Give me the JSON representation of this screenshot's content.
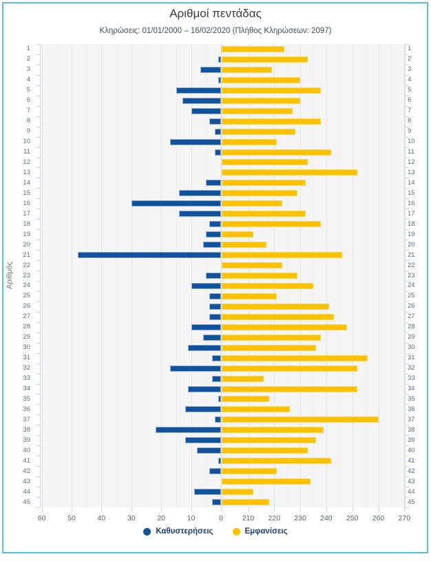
{
  "panel": {
    "title": "Αριθμοί πεντάδας",
    "subtitle": "Κληρώσεις: 01/01/2000 – 16/02/2020 (Πλήθος Κληρώσεων: 2097)"
  },
  "y_axis": {
    "title": "Αριθμός"
  },
  "x_axis": {
    "left_ticks": [
      60,
      50,
      40,
      30,
      20,
      10,
      0
    ],
    "right_ticks": [
      210,
      220,
      230,
      240,
      250,
      260,
      270
    ]
  },
  "legend": {
    "items": [
      {
        "label": "Καθυστερήσεις",
        "color": "#12529c"
      },
      {
        "label": "Εμφανίσεις",
        "color": "#fcc101"
      }
    ]
  },
  "colors": {
    "delay_bar": "#12529c",
    "appear_bar": "#fcc101",
    "panel_border": "#54c0e8",
    "plot_background": "#f4f4f4"
  },
  "chart_data": {
    "type": "bar",
    "orientation": "horizontal-diverging",
    "title": "Αριθμοί πεντάδας",
    "subtitle": "Κληρώσεις: 01/01/2000 – 16/02/2020 (Πλήθος Κληρώσεων: 2097)",
    "ylabel": "Αριθμός",
    "left_axis_range": [
      60,
      0
    ],
    "right_axis_range": [
      210,
      270
    ],
    "grid": true,
    "legend_position": "bottom",
    "categories": [
      1,
      2,
      3,
      4,
      5,
      6,
      7,
      8,
      9,
      10,
      11,
      12,
      13,
      14,
      15,
      16,
      17,
      18,
      19,
      20,
      21,
      22,
      23,
      24,
      25,
      26,
      27,
      28,
      29,
      30,
      31,
      32,
      33,
      34,
      35,
      36,
      37,
      38,
      39,
      40,
      41,
      42,
      43,
      44,
      45
    ],
    "series": [
      {
        "name": "Καθυστερήσεις",
        "color": "#12529c",
        "values": [
          0,
          1,
          7,
          1,
          15,
          13,
          10,
          4,
          2,
          17,
          2,
          0,
          0,
          5,
          14,
          30,
          14,
          4,
          5,
          6,
          48,
          0,
          5,
          10,
          4,
          4,
          4,
          10,
          6,
          11,
          3,
          17,
          3,
          11,
          1,
          12,
          2,
          22,
          12,
          8,
          1,
          4,
          0,
          9,
          3
        ]
      },
      {
        "name": "Εμφανίσεις",
        "color": "#fcc101",
        "values": [
          224,
          233,
          219,
          230,
          238,
          230,
          227,
          238,
          228,
          221,
          242,
          233,
          252,
          232,
          229,
          223,
          232,
          238,
          212,
          217,
          246,
          223,
          229,
          235,
          221,
          241,
          243,
          248,
          238,
          236,
          256,
          252,
          216,
          252,
          218,
          226,
          260,
          239,
          236,
          233,
          242,
          221,
          234,
          212,
          218
        ]
      }
    ]
  }
}
